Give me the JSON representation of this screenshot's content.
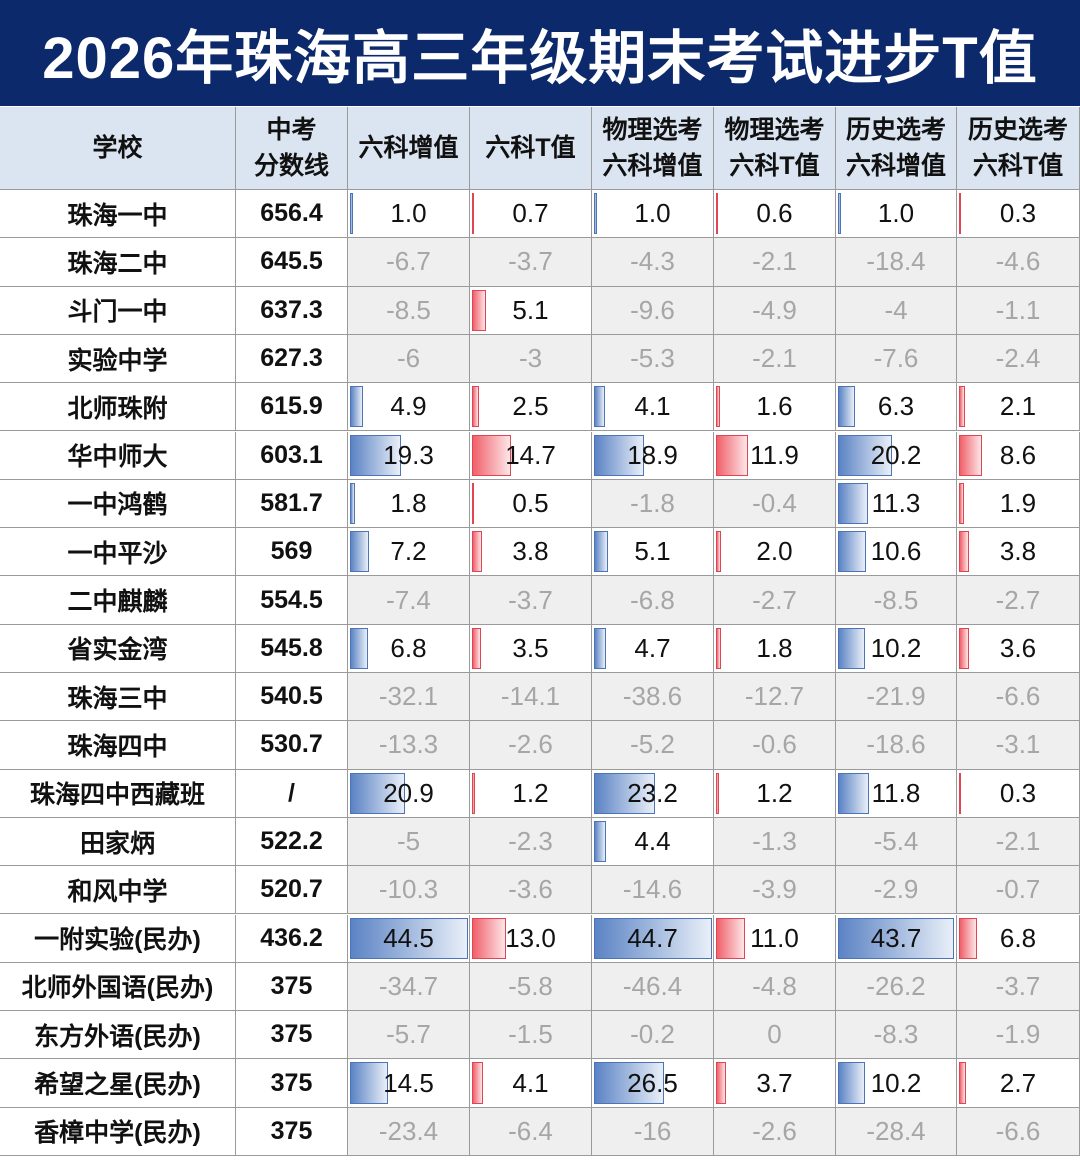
{
  "header": {
    "title": "2026年珠海高三年级期末考试进步T值"
  },
  "table": {
    "columns": [
      "学校",
      "中考\n分数线",
      "六科增值",
      "六科T值",
      "物理选考\n六科增值",
      "物理选考\n六科T值",
      "历史选考\n六科增值",
      "历史选考\n六科T值"
    ],
    "rows": [
      [
        "珠海一中",
        "656.4",
        "1.0",
        "0.7",
        "1.0",
        "0.6",
        "1.0",
        "0.3"
      ],
      [
        "珠海二中",
        "645.5",
        "-6.7",
        "-3.7",
        "-4.3",
        "-2.1",
        "-18.4",
        "-4.6"
      ],
      [
        "斗门一中",
        "637.3",
        "-8.5",
        "5.1",
        "-9.6",
        "-4.9",
        "-4",
        "-1.1"
      ],
      [
        "实验中学",
        "627.3",
        "-6",
        "-3",
        "-5.3",
        "-2.1",
        "-7.6",
        "-2.4"
      ],
      [
        "北师珠附",
        "615.9",
        "4.9",
        "2.5",
        "4.1",
        "1.6",
        "6.3",
        "2.1"
      ],
      [
        "华中师大",
        "603.1",
        "19.3",
        "14.7",
        "18.9",
        "11.9",
        "20.2",
        "8.6"
      ],
      [
        "一中鸿鹤",
        "581.7",
        "1.8",
        "0.5",
        "-1.8",
        "-0.4",
        "11.3",
        "1.9"
      ],
      [
        "一中平沙",
        "569",
        "7.2",
        "3.8",
        "5.1",
        "2.0",
        "10.6",
        "3.8"
      ],
      [
        "二中麒麟",
        "554.5",
        "-7.4",
        "-3.7",
        "-6.8",
        "-2.7",
        "-8.5",
        "-2.7"
      ],
      [
        "省实金湾",
        "545.8",
        "6.8",
        "3.5",
        "4.7",
        "1.8",
        "10.2",
        "3.6"
      ],
      [
        "珠海三中",
        "540.5",
        "-32.1",
        "-14.1",
        "-38.6",
        "-12.7",
        "-21.9",
        "-6.6"
      ],
      [
        "珠海四中",
        "530.7",
        "-13.3",
        "-2.6",
        "-5.2",
        "-0.6",
        "-18.6",
        "-3.1"
      ],
      [
        "珠海四中西藏班",
        "/",
        "20.9",
        "1.2",
        "23.2",
        "1.2",
        "11.8",
        "0.3"
      ],
      [
        "田家炳",
        "522.2",
        "-5",
        "-2.3",
        "4.4",
        "-1.3",
        "-5.4",
        "-2.1"
      ],
      [
        "和风中学",
        "520.7",
        "-10.3",
        "-3.6",
        "-14.6",
        "-3.9",
        "-2.9",
        "-0.7"
      ],
      [
        "一附实验(民办)",
        "436.2",
        "44.5",
        "13.0",
        "44.7",
        "11.0",
        "43.7",
        "6.8"
      ],
      [
        "北师外国语(民办)",
        "375",
        "-34.7",
        "-5.8",
        "-46.4",
        "-4.8",
        "-26.2",
        "-3.7"
      ],
      [
        "东方外语(民办)",
        "375",
        "-5.7",
        "-1.5",
        "-0.2",
        "0",
        "-8.3",
        "-1.9"
      ],
      [
        "希望之星(民办)",
        "375",
        "14.5",
        "4.1",
        "26.5",
        "3.7",
        "10.2",
        "2.7"
      ],
      [
        "香樟中学(民办)",
        "375",
        "-23.4",
        "-6.4",
        "-16",
        "-2.6",
        "-28.4",
        "-6.6"
      ]
    ]
  }
}
